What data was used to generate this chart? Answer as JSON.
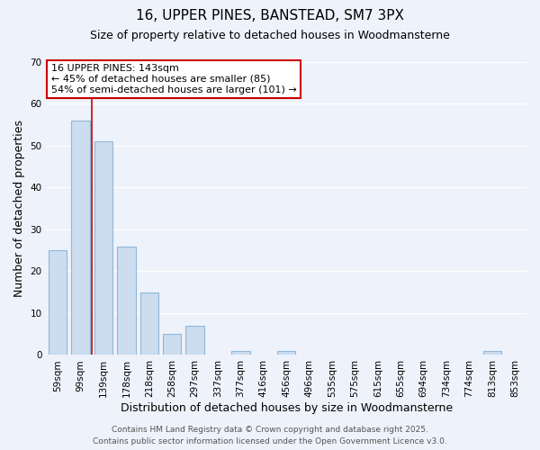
{
  "title": "16, UPPER PINES, BANSTEAD, SM7 3PX",
  "subtitle": "Size of property relative to detached houses in Woodmansterne",
  "xlabel": "Distribution of detached houses by size in Woodmansterne",
  "ylabel": "Number of detached properties",
  "categories": [
    "59sqm",
    "99sqm",
    "139sqm",
    "178sqm",
    "218sqm",
    "258sqm",
    "297sqm",
    "337sqm",
    "377sqm",
    "416sqm",
    "456sqm",
    "496sqm",
    "535sqm",
    "575sqm",
    "615sqm",
    "655sqm",
    "694sqm",
    "734sqm",
    "774sqm",
    "813sqm",
    "853sqm"
  ],
  "values": [
    25,
    56,
    51,
    26,
    15,
    5,
    7,
    0,
    1,
    0,
    1,
    0,
    0,
    0,
    0,
    0,
    0,
    0,
    0,
    1,
    0
  ],
  "bar_color": "#ccddf0",
  "bar_edge_color": "#90b8d8",
  "ylim": [
    0,
    70
  ],
  "yticks": [
    0,
    10,
    20,
    30,
    40,
    50,
    60,
    70
  ],
  "vline_x": 1.5,
  "vline_color": "#cc0000",
  "annotation_title": "16 UPPER PINES: 143sqm",
  "annotation_line1": "← 45% of detached houses are smaller (85)",
  "annotation_line2": "54% of semi-detached houses are larger (101) →",
  "annotation_box_color": "#ffffff",
  "annotation_box_edge": "#cc0000",
  "footer1": "Contains HM Land Registry data © Crown copyright and database right 2025.",
  "footer2": "Contains public sector information licensed under the Open Government Licence v3.0.",
  "background_color": "#eef2fb",
  "plot_bg_color": "#eef2fb",
  "title_fontsize": 11,
  "subtitle_fontsize": 9,
  "axis_label_fontsize": 9,
  "tick_fontsize": 7.5,
  "annotation_fontsize": 8,
  "footer_fontsize": 6.5
}
